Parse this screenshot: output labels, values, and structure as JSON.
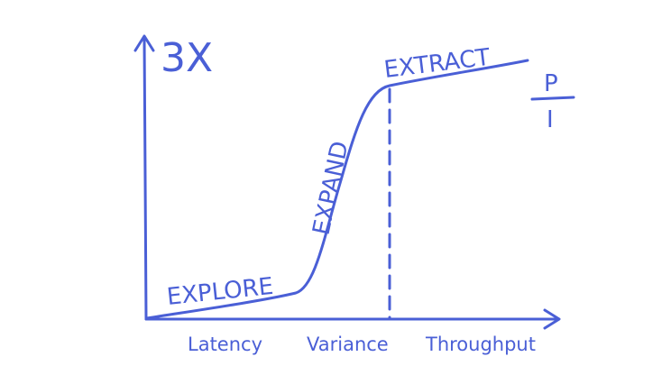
{
  "diagram": {
    "top_label": "3X",
    "phases": {
      "explore": "EXPLORE",
      "expand": "EXPAND",
      "extract": "EXTRACT"
    },
    "x_labels": {
      "left": "Latency",
      "middle": "Variance",
      "right": "Throughput"
    },
    "ratio": {
      "numerator": "P",
      "denominator": "I"
    }
  },
  "colors": {
    "ink": "#4a5fd6",
    "background": "#ffffff"
  }
}
